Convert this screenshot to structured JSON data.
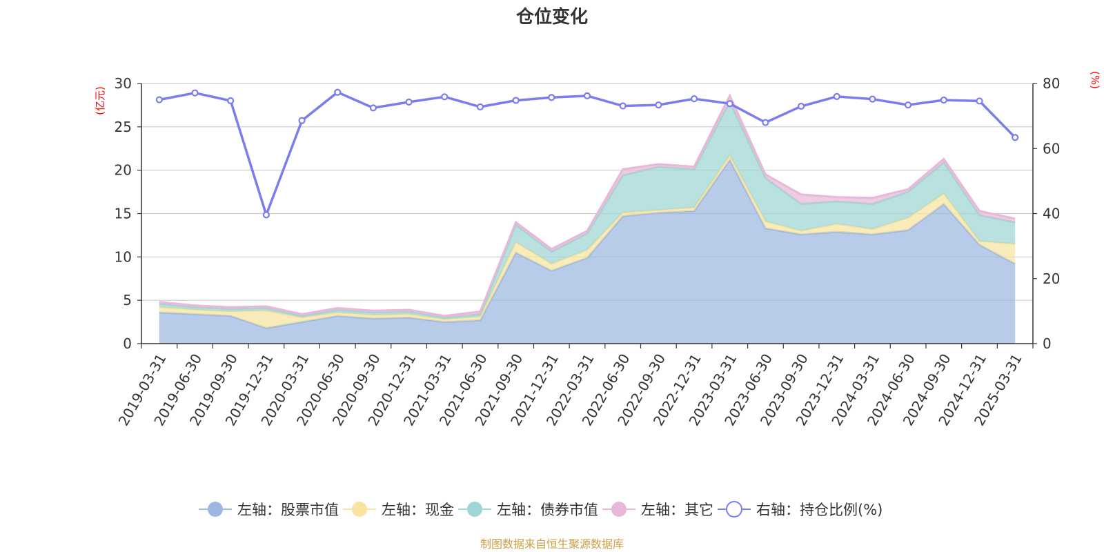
{
  "chart_data": {
    "type": "area",
    "title": "仓位变化",
    "x": [
      "2019-03-31",
      "2019-06-30",
      "2019-09-30",
      "2019-12-31",
      "2020-03-31",
      "2020-06-30",
      "2020-09-30",
      "2020-12-31",
      "2021-03-31",
      "2021-06-30",
      "2021-09-30",
      "2021-12-31",
      "2022-03-31",
      "2022-06-30",
      "2022-09-30",
      "2022-12-31",
      "2023-03-31",
      "2023-06-30",
      "2023-09-30",
      "2023-12-31",
      "2024-03-31",
      "2024-06-30",
      "2024-09-30",
      "2024-12-31",
      "2025-03-31"
    ],
    "left_axis": {
      "unit_label": "(亿元)",
      "ylim": [
        0,
        30
      ],
      "ticks": [
        "0",
        "5",
        "10",
        "15",
        "20",
        "25",
        "30"
      ],
      "stacked": true
    },
    "right_axis": {
      "unit_label": "(%)",
      "ylim": [
        0,
        80
      ],
      "ticks": [
        "0",
        "20",
        "40",
        "60",
        "80"
      ]
    },
    "series": [
      {
        "name": "左轴：股票市值",
        "axis": "left",
        "kind": "area",
        "color": "#9db8e0",
        "values": [
          3.6,
          3.4,
          3.2,
          1.8,
          2.5,
          3.2,
          2.9,
          3.0,
          2.5,
          2.7,
          10.5,
          8.4,
          9.9,
          14.7,
          15.1,
          15.3,
          21.2,
          13.3,
          12.6,
          12.9,
          12.6,
          13.1,
          16.1,
          11.4,
          9.2
        ]
      },
      {
        "name": "左轴：现金",
        "axis": "left",
        "kind": "area",
        "color": "#f8e3a0",
        "values": [
          0.6,
          0.5,
          0.5,
          2.0,
          0.5,
          0.4,
          0.4,
          0.4,
          0.3,
          0.4,
          1.2,
          0.8,
          0.9,
          0.4,
          0.3,
          0.4,
          0.5,
          0.8,
          0.4,
          0.9,
          0.6,
          1.4,
          1.2,
          0.4,
          2.3
        ]
      },
      {
        "name": "左轴：债券市值",
        "axis": "left",
        "kind": "area",
        "color": "#9ed6d4",
        "values": [
          0.4,
          0.3,
          0.3,
          0.3,
          0.2,
          0.3,
          0.3,
          0.3,
          0.2,
          0.3,
          2.0,
          1.4,
          1.9,
          4.3,
          5.0,
          4.4,
          6.2,
          5.0,
          3.1,
          2.6,
          2.9,
          3.0,
          3.6,
          3.0,
          2.5
        ]
      },
      {
        "name": "左轴：其它",
        "axis": "left",
        "kind": "area",
        "color": "#e8b8d8",
        "values": [
          0.2,
          0.2,
          0.2,
          0.2,
          0.2,
          0.2,
          0.2,
          0.2,
          0.2,
          0.3,
          0.3,
          0.3,
          0.3,
          0.7,
          0.3,
          0.3,
          0.7,
          0.4,
          1.1,
          0.5,
          0.7,
          0.3,
          0.4,
          0.5,
          0.4
        ]
      },
      {
        "name": "右轴：持仓比例(%)",
        "axis": "right",
        "kind": "line",
        "color": "#7b7cee",
        "values": [
          75.0,
          77.1,
          74.7,
          39.6,
          68.6,
          77.3,
          72.5,
          74.3,
          75.9,
          72.8,
          74.8,
          75.7,
          76.2,
          73.1,
          73.4,
          75.3,
          73.8,
          68.0,
          73.0,
          76.0,
          75.2,
          73.4,
          74.9,
          74.6,
          63.4
        ]
      }
    ]
  },
  "source_note": "制图数据来自恒生聚源数据库"
}
